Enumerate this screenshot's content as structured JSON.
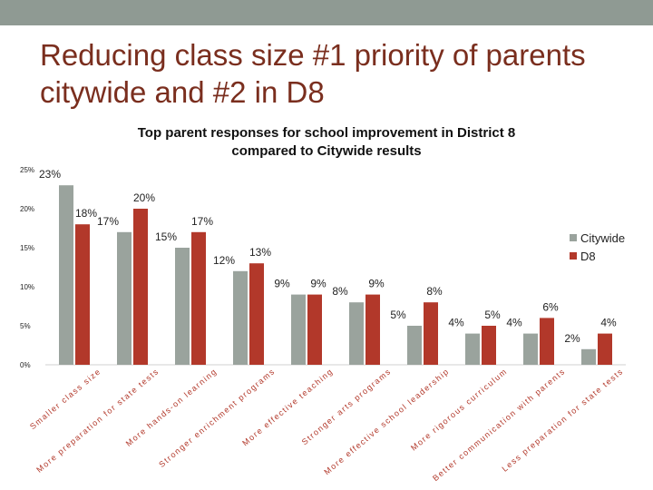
{
  "slide": {
    "title_line1": "Reducing class size #1 priority of parents",
    "title_line2": "citywide and #2 in D8"
  },
  "chart_data": {
    "type": "bar",
    "title_line1": "Top parent responses for school improvement in District 8",
    "title_line2": "compared to Citywide results",
    "categories": [
      "Smaller class size",
      "More preparation for state tests",
      "More hands-on learning",
      "Stronger enrichment programs",
      "More effective teaching",
      "Stronger arts programs",
      "More effective school leadership",
      "More rigorous curriculum",
      "Better communication with parents",
      "Less preparation for state tests"
    ],
    "series": [
      {
        "name": "Citywide",
        "color": "#9aa39d",
        "values": [
          23,
          17,
          15,
          12,
          9,
          8,
          5,
          4,
          4,
          2
        ]
      },
      {
        "name": "D8",
        "color": "#b2382a",
        "values": [
          18,
          20,
          17,
          13,
          9,
          9,
          8,
          5,
          6,
          4
        ]
      }
    ],
    "data_labels": {
      "Citywide": [
        "23%",
        "17%",
        "15%",
        "12%",
        "9%",
        "8%",
        "5%",
        "4%",
        "4%",
        "2%"
      ],
      "D8": [
        "18%",
        "20%",
        "17%",
        "13%",
        "9%",
        "9%",
        "8%",
        "5%",
        "6%",
        "4%"
      ]
    },
    "y_ticks": [
      0,
      5,
      10,
      15,
      20,
      25
    ],
    "y_tick_labels": [
      "0%",
      "5%",
      "10%",
      "15%",
      "20%",
      "25%"
    ],
    "ylim": [
      0,
      25
    ],
    "grid": false,
    "legend_position": "right"
  }
}
